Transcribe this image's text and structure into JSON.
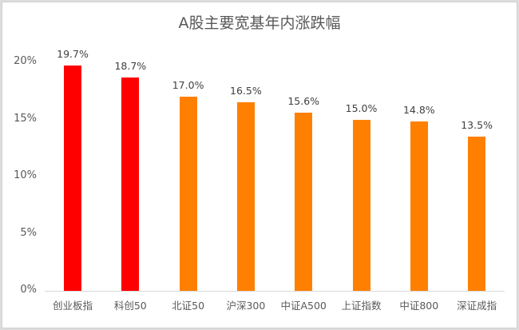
{
  "chart_data": {
    "type": "bar",
    "title": "A股主要宽基年内涨跌幅",
    "xlabel": "",
    "ylabel": "",
    "ylim": [
      0,
      20
    ],
    "yticks": [
      "0%",
      "5%",
      "10%",
      "15%",
      "20%"
    ],
    "grid": false,
    "legend": null,
    "categories": [
      "创业板指",
      "科创50",
      "北证50",
      "沪深300",
      "中证A500",
      "上证指数",
      "中证800",
      "深证成指"
    ],
    "values": [
      19.7,
      18.7,
      17.0,
      16.5,
      15.6,
      15.0,
      14.8,
      13.5
    ],
    "value_labels": [
      "19.7%",
      "18.7%",
      "17.0%",
      "16.5%",
      "15.6%",
      "15.0%",
      "14.8%",
      "13.5%"
    ],
    "bar_colors": [
      "#ff0000",
      "#ff0000",
      "#ff8000",
      "#ff8000",
      "#ff8000",
      "#ff8000",
      "#ff8000",
      "#ff8000"
    ]
  }
}
